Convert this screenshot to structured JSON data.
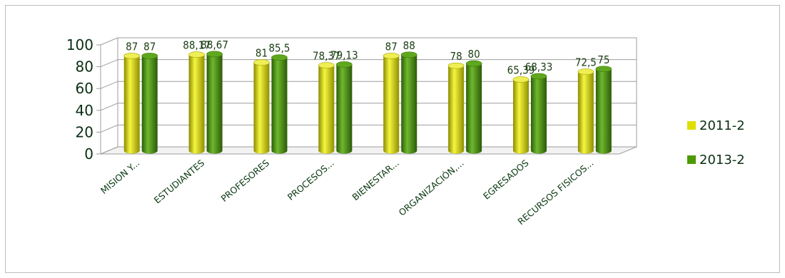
{
  "chart_data": {
    "type": "bar",
    "style": "3d-cylinder",
    "categories": [
      "MISION Y...",
      "ESTUDIANTES",
      "PROFESORES",
      "PROCESOS...",
      "BIENESTAR...",
      "ORGANIZACIÓN,...",
      "EGRESADOS",
      "RECURSOS FISICOS..."
    ],
    "series": [
      {
        "name": "2011-2",
        "color": "#dede00",
        "values": [
          87,
          88.17,
          81,
          78.37,
          87,
          78,
          65.39,
          72.5
        ],
        "labels": [
          "87",
          "88,17",
          "81",
          "78,37",
          "87",
          "78",
          "65,39",
          "72,5"
        ]
      },
      {
        "name": "2013-2",
        "color": "#4e9a06",
        "values": [
          87,
          88.67,
          85.5,
          79.13,
          88,
          80,
          68.33,
          75
        ],
        "labels": [
          "87",
          "88,67",
          "85,5",
          "79,13",
          "88",
          "80",
          "68,33",
          "75"
        ]
      }
    ],
    "yticks": [
      0,
      20,
      40,
      60,
      80,
      100
    ],
    "ylim": [
      0,
      100
    ],
    "grid": true,
    "legend": "right",
    "title": "",
    "xlabel": "",
    "ylabel": ""
  }
}
